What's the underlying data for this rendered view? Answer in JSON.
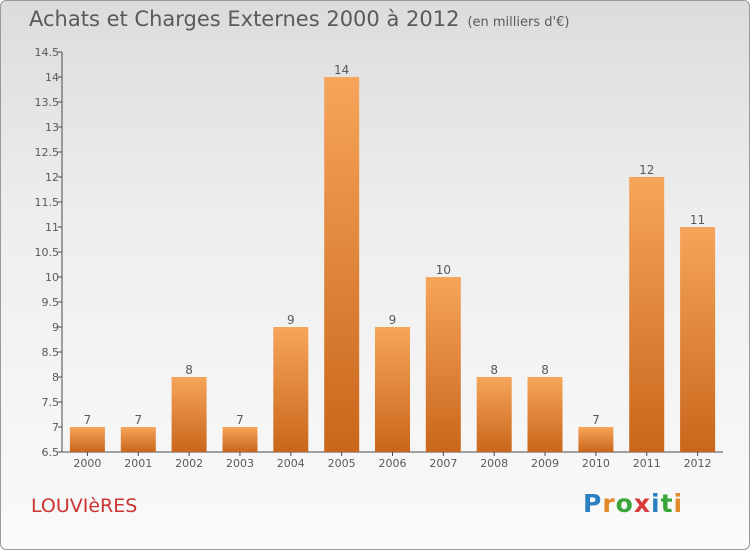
{
  "title": {
    "main": "Achats et Charges Externes 2000 à 2012",
    "unit": "(en milliers d'€)"
  },
  "commune": "LOUVIèRES",
  "logo": {
    "letters": [
      "P",
      "r",
      "o",
      "x",
      "i",
      "t",
      "i"
    ],
    "colors": [
      "#2a7fc1",
      "#e2892a",
      "#3aa63a",
      "#d63a3a",
      "#2a7fc1",
      "#3aa63a",
      "#e2892a"
    ]
  },
  "colors": {
    "bar_top": "#f6a55a",
    "bar_bottom": "#c9661b",
    "commune_text": "#cc3333",
    "text": "#5a5a5a"
  },
  "chart_data": {
    "type": "bar",
    "categories": [
      "2000",
      "2001",
      "2002",
      "2003",
      "2004",
      "2005",
      "2006",
      "2007",
      "2008",
      "2009",
      "2010",
      "2011",
      "2012"
    ],
    "values": [
      7,
      7,
      8,
      7,
      9,
      14,
      9,
      10,
      8,
      8,
      7,
      12,
      11
    ],
    "ylim": [
      6.5,
      14.5
    ],
    "yticks": [
      "6.5",
      "7",
      "7.5",
      "8",
      "8.5",
      "9",
      "9.5",
      "10",
      "10.5",
      "11",
      "11.5",
      "12",
      "12.5",
      "13",
      "13.5",
      "14",
      "14.5"
    ],
    "grid": false,
    "legend": "none"
  }
}
